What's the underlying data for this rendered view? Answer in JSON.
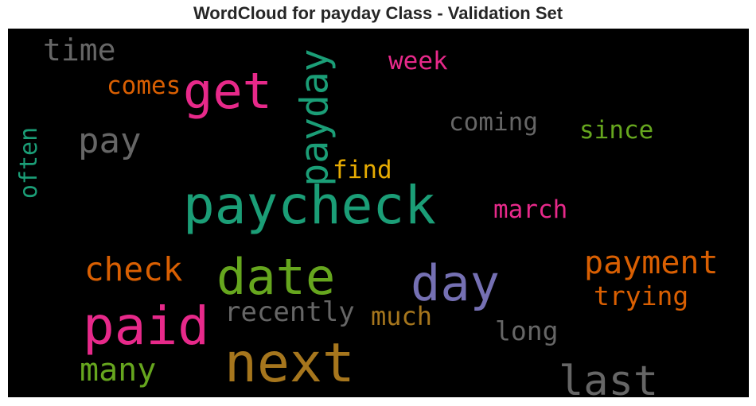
{
  "title": "WordCloud for payday Class - Validation Set",
  "words": [
    {
      "id": "time",
      "text": "time",
      "color": "#666666"
    },
    {
      "id": "get",
      "text": "get",
      "color": "#e7298a"
    },
    {
      "id": "payday",
      "text": "payday",
      "color": "#1b9e77"
    },
    {
      "id": "week",
      "text": "week",
      "color": "#e7298a"
    },
    {
      "id": "comes",
      "text": "comes",
      "color": "#d95f02"
    },
    {
      "id": "coming",
      "text": "coming",
      "color": "#666666"
    },
    {
      "id": "since",
      "text": "since",
      "color": "#66a61e"
    },
    {
      "id": "pay",
      "text": "pay",
      "color": "#666666"
    },
    {
      "id": "often",
      "text": "often",
      "color": "#1b9e77"
    },
    {
      "id": "find",
      "text": "find",
      "color": "#e6ab02"
    },
    {
      "id": "paycheck",
      "text": "paycheck",
      "color": "#1b9e77"
    },
    {
      "id": "march",
      "text": "march",
      "color": "#e7298a"
    },
    {
      "id": "payment",
      "text": "payment",
      "color": "#d95f02"
    },
    {
      "id": "check",
      "text": "check",
      "color": "#d95f02"
    },
    {
      "id": "date",
      "text": "date",
      "color": "#66a61e"
    },
    {
      "id": "day",
      "text": "day",
      "color": "#7570b3"
    },
    {
      "id": "trying",
      "text": "trying",
      "color": "#d95f02"
    },
    {
      "id": "paid",
      "text": "paid",
      "color": "#e7298a"
    },
    {
      "id": "recently",
      "text": "recently",
      "color": "#666666"
    },
    {
      "id": "much",
      "text": "much",
      "color": "#a6761d"
    },
    {
      "id": "long",
      "text": "long",
      "color": "#666666"
    },
    {
      "id": "many",
      "text": "many",
      "color": "#66a61e"
    },
    {
      "id": "next",
      "text": "next",
      "color": "#a6761d"
    },
    {
      "id": "last",
      "text": "last",
      "color": "#666666"
    }
  ]
}
